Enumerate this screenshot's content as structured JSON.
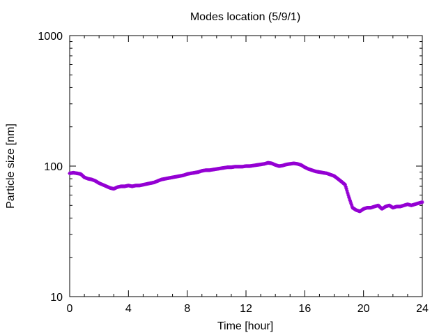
{
  "chart_data": {
    "type": "scatter",
    "title": "Modes location (5/9/1)",
    "xlabel": "Time [hour]",
    "ylabel": "Particle size [nm]",
    "xlim": [
      0,
      24
    ],
    "ylim": [
      10,
      1000
    ],
    "yscale": "log",
    "xticks": [
      "0",
      "4",
      "8",
      "12",
      "16",
      "20",
      "24"
    ],
    "yticks": [
      "10",
      "100",
      "1000"
    ],
    "grid": false,
    "marker_color": "#9400d3",
    "series": [
      {
        "x": [
          0,
          0.25,
          0.5,
          0.75,
          1.0,
          1.25,
          1.5,
          1.75,
          2.0,
          2.25,
          2.5,
          2.75,
          3.0,
          3.25,
          3.5,
          3.75,
          4.0,
          4.25,
          4.5,
          4.75,
          5.0,
          5.25,
          5.5,
          5.75,
          6.0,
          6.25,
          6.5,
          6.75,
          7.0,
          7.25,
          7.5,
          7.75,
          8.0,
          8.25,
          8.5,
          8.75,
          9.0,
          9.25,
          9.5,
          9.75,
          10.0,
          10.25,
          10.5,
          10.75,
          11.0,
          11.25,
          11.5,
          11.75,
          12.0,
          12.25,
          12.5,
          12.75,
          13.0,
          13.25,
          13.5,
          13.75,
          14.0,
          14.25,
          14.5,
          14.75,
          15.0,
          15.25,
          15.5,
          15.75,
          16.0,
          16.25,
          16.5,
          16.75,
          17.0,
          17.25,
          17.5,
          17.75,
          18.0,
          18.25,
          18.5,
          18.75,
          19.0,
          19.25,
          19.5,
          19.75,
          20.0,
          20.25,
          20.5,
          20.75,
          21.0,
          21.25,
          21.5,
          21.75,
          22.0,
          22.25,
          22.5,
          22.75,
          23.0,
          23.25,
          23.5,
          23.75,
          24.0
        ],
        "values": [
          88,
          89,
          88,
          87,
          82,
          80,
          79,
          77,
          74,
          72,
          70,
          68,
          67,
          69,
          70,
          70,
          71,
          70,
          71,
          71,
          72,
          73,
          74,
          75,
          77,
          79,
          80,
          81,
          82,
          83,
          84,
          85,
          87,
          88,
          89,
          90,
          92,
          93,
          93,
          94,
          95,
          96,
          97,
          98,
          98,
          99,
          99,
          99,
          100,
          100,
          101,
          102,
          103,
          104,
          106,
          105,
          102,
          100,
          101,
          103,
          104,
          105,
          104,
          102,
          98,
          95,
          93,
          91,
          90,
          89,
          88,
          86,
          84,
          80,
          76,
          72,
          58,
          48,
          46,
          45,
          47,
          48,
          48,
          49,
          50,
          47,
          49,
          50,
          48,
          49,
          49,
          50,
          51,
          50,
          51,
          52,
          53
        ]
      }
    ]
  }
}
